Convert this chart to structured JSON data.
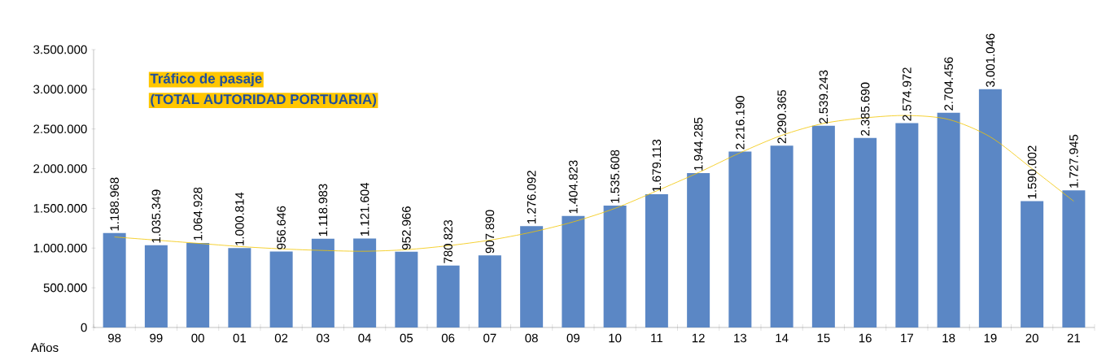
{
  "chart_data": {
    "type": "bar",
    "title": "Tráfico de pasaje",
    "subtitle": "(TOTAL AUTORIDAD PORTUARIA)",
    "xlabel": "Años",
    "categories": [
      "98",
      "99",
      "00",
      "01",
      "02",
      "03",
      "04",
      "05",
      "06",
      "07",
      "08",
      "09",
      "10",
      "11",
      "12",
      "13",
      "14",
      "15",
      "16",
      "17",
      "18",
      "19",
      "20",
      "21"
    ],
    "series": [
      {
        "type": "bar",
        "color": "#5b87c5",
        "values": [
          1188968,
          1035349,
          1064928,
          1000814,
          956646,
          1118983,
          1121604,
          952966,
          780823,
          907890,
          1276092,
          1404823,
          1535608,
          1679113,
          1944285,
          2216190,
          2290365,
          2539243,
          2385690,
          2574972,
          2704456,
          3001046,
          1590002,
          1727945
        ],
        "value_labels": [
          "1.188.968",
          "1.035.349",
          "1.064.928",
          "1.000.814",
          "956.646",
          "1.118.983",
          "1.121.604",
          "952.966",
          "780.823",
          "907.890",
          "1.276.092",
          "1.404.823",
          "1.535.608",
          "1.679.113",
          "1.944.285",
          "2.216.190",
          "2.290.365",
          "2.539.243",
          "2.385.690",
          "2.574.972",
          "2.704.456",
          "3.001.046",
          "1.590.002",
          "1.727.945"
        ]
      },
      {
        "type": "line",
        "color": "#f2c500",
        "marker": "none",
        "values": [
          1140000,
          1100000,
          1060000,
          1020000,
          990000,
          970000,
          960000,
          980000,
          1030000,
          1100000,
          1200000,
          1330000,
          1500000,
          1720000,
          1950000,
          2200000,
          2420000,
          2570000,
          2640000,
          2670000,
          2620000,
          2400000,
          2000000,
          1590000
        ]
      }
    ],
    "ylim": [
      0,
      3500000
    ],
    "yticks": [
      {
        "value": 0,
        "label": "0"
      },
      {
        "value": 500000,
        "label": "500.000"
      },
      {
        "value": 1000000,
        "label": "1.000.000"
      },
      {
        "value": 1500000,
        "label": "1.500.000"
      },
      {
        "value": 2000000,
        "label": "2.000.000"
      },
      {
        "value": 2500000,
        "label": "2.500.000"
      },
      {
        "value": 3000000,
        "label": "3.000.000"
      },
      {
        "value": 3500000,
        "label": "3.500.000"
      }
    ],
    "grid": false
  }
}
